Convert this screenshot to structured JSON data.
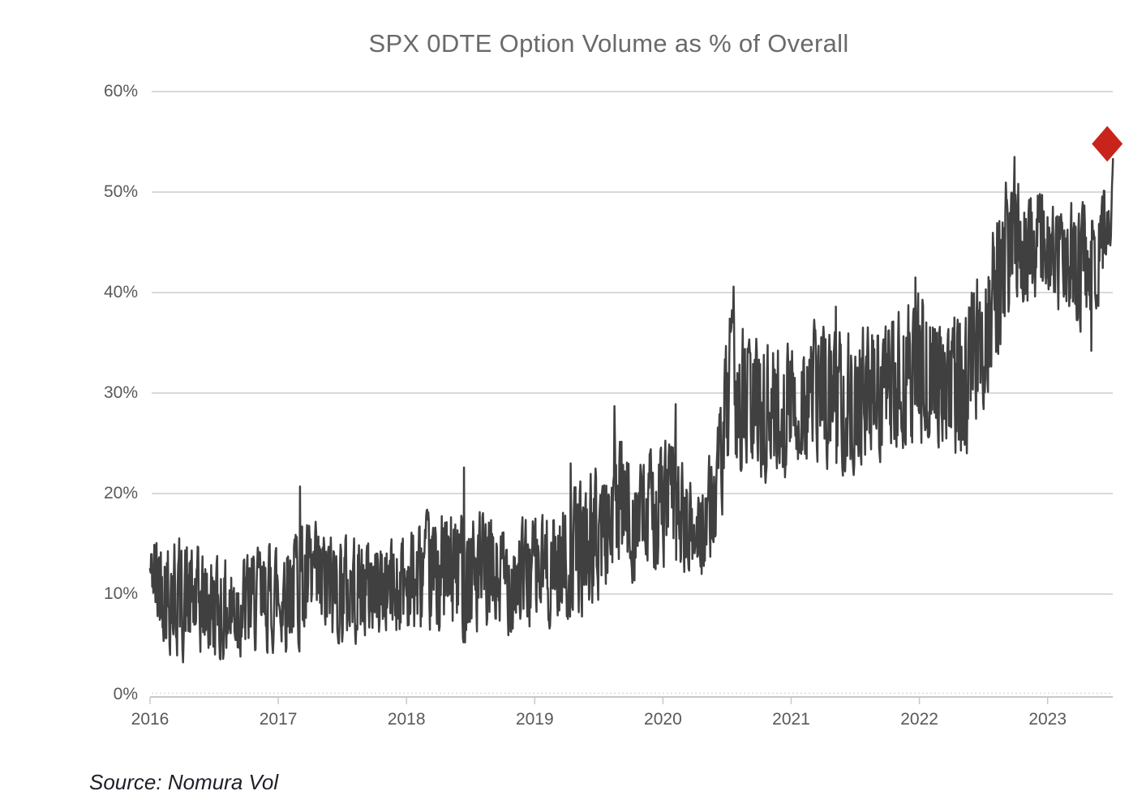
{
  "title": "SPX 0DTE Option Volume as % of Overall",
  "source_note": "Source: Nomura Vol",
  "colors": {
    "background": "#ffffff",
    "line": "#404040",
    "marker_red": "#c9241c",
    "grid": "#d9d9d9",
    "grid_dotted": "#dcdcdc",
    "axis": "#c8c8c8",
    "title_text": "#6a6a6a",
    "tick_text": "#595959",
    "source_text": "#1f1f28"
  },
  "chart_data": {
    "type": "line",
    "title": "SPX 0DTE Option Volume as % of Overall",
    "xlabel": "",
    "ylabel": "",
    "x_ticks": [
      "2016",
      "2017",
      "2018",
      "2019",
      "2020",
      "2021",
      "2022",
      "2023"
    ],
    "y_ticks": [
      "0%",
      "10%",
      "20%",
      "30%",
      "40%",
      "50%",
      "60%"
    ],
    "ylim": [
      0,
      60
    ],
    "xlim_years": [
      2016.0,
      2023.51
    ],
    "grid": "horizontal",
    "legend": "none",
    "series": [
      {
        "name": "SPX 0DTE option volume as % of overall (daily)",
        "style": "noisy-daily-line",
        "first_value_pct": 12.5,
        "last_value_pct": 53.3,
        "trend_anchors": [
          [
            2016.0,
            12.5,
            2.0
          ],
          [
            2016.05,
            11.5,
            5.0
          ],
          [
            2016.18,
            10.0,
            6.3
          ],
          [
            2016.38,
            9.0,
            5.5
          ],
          [
            2016.6,
            8.5,
            5.0
          ],
          [
            2016.9,
            9.5,
            5.2
          ],
          [
            2017.15,
            11.0,
            6.3
          ],
          [
            2017.45,
            10.5,
            5.5
          ],
          [
            2017.75,
            10.8,
            5.0
          ],
          [
            2018.05,
            11.2,
            5.6
          ],
          [
            2018.25,
            12.0,
            6.3
          ],
          [
            2018.5,
            12.0,
            6.8
          ],
          [
            2018.75,
            11.5,
            5.5
          ],
          [
            2019.0,
            12.2,
            5.5
          ],
          [
            2019.25,
            13.5,
            6.3
          ],
          [
            2019.5,
            16.0,
            6.8
          ],
          [
            2019.65,
            18.5,
            7.2
          ],
          [
            2019.85,
            17.5,
            6.0
          ],
          [
            2020.05,
            19.5,
            6.8
          ],
          [
            2020.25,
            15.5,
            4.5
          ],
          [
            2020.42,
            20.0,
            5.5
          ],
          [
            2020.52,
            30.0,
            7.8
          ],
          [
            2020.72,
            28.5,
            7.0
          ],
          [
            2020.95,
            28.5,
            7.0
          ],
          [
            2021.2,
            30.0,
            7.3
          ],
          [
            2021.5,
            29.5,
            7.0
          ],
          [
            2021.8,
            30.5,
            7.0
          ],
          [
            2021.97,
            32.5,
            7.8
          ],
          [
            2022.15,
            32.0,
            7.3
          ],
          [
            2022.35,
            30.5,
            7.3
          ],
          [
            2022.55,
            38.0,
            7.8
          ],
          [
            2022.72,
            45.5,
            7.3
          ],
          [
            2022.9,
            45.0,
            6.0
          ],
          [
            2023.05,
            43.5,
            5.5
          ],
          [
            2023.3,
            42.5,
            6.2
          ],
          [
            2023.42,
            44.5,
            5.5
          ],
          [
            2023.49,
            47.5,
            3.5
          ],
          [
            2023.508,
            53.3,
            0.5
          ]
        ],
        "notable_points": [
          {
            "t": 2016.55,
            "v": 3.5
          },
          {
            "t": 2017.17,
            "v": 20.7
          },
          {
            "t": 2018.45,
            "v": 22.6
          },
          {
            "t": 2019.28,
            "v": 23.0
          },
          {
            "t": 2019.62,
            "v": 28.7
          },
          {
            "t": 2020.1,
            "v": 28.9
          },
          {
            "t": 2020.3,
            "v": 12.0
          },
          {
            "t": 2020.55,
            "v": 40.6
          },
          {
            "t": 2021.35,
            "v": 38.6
          },
          {
            "t": 2021.97,
            "v": 41.5
          },
          {
            "t": 2022.37,
            "v": 24.0
          },
          {
            "t": 2022.74,
            "v": 53.5
          },
          {
            "t": 2023.34,
            "v": 34.2
          },
          {
            "t": 2023.508,
            "v": 53.3
          }
        ]
      }
    ],
    "end_marker": {
      "shape": "diamond",
      "year": 2023.465,
      "value_pct": 54.8
    },
    "noise_seed": 42
  }
}
